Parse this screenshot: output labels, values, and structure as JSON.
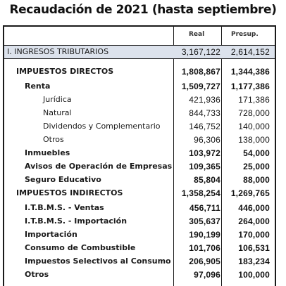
{
  "title": "Recaudación de 2021 (hasta septiembre)",
  "columns": {
    "real": "Real",
    "presup": "Presup."
  },
  "rows": [
    {
      "label": "I. INGRESOS TRIBUTARIOS",
      "real": "3,167,122",
      "presup": "2,614,152"
    },
    {
      "label": "IMPUESTOS DIRECTOS",
      "real": "1,808,867",
      "presup": "1,344,386"
    },
    {
      "label": "Renta",
      "real": "1,509,727",
      "presup": "1,177,386"
    },
    {
      "label": "Jurídica",
      "real": "421,936",
      "presup": "171,386"
    },
    {
      "label": "Natural",
      "real": "844,733",
      "presup": "728,000"
    },
    {
      "label": "Dividendos y Complementario",
      "real": "146,752",
      "presup": "140,000"
    },
    {
      "label": "Otros",
      "real": "96,306",
      "presup": "138,000"
    },
    {
      "label": "Inmuebles",
      "real": "103,972",
      "presup": "54,000"
    },
    {
      "label": "Avisos de Operación de Empresas",
      "real": "109,365",
      "presup": "25,000"
    },
    {
      "label": "Seguro Educativo",
      "real": "85,804",
      "presup": "88,000"
    },
    {
      "label": "IMPUESTOS INDIRECTOS",
      "real": "1,358,254",
      "presup": "1,269,765"
    },
    {
      "label": "I.T.B.M.S. - Ventas",
      "real": "456,711",
      "presup": "446,000"
    },
    {
      "label": "I.T.B.M.S. - Importación",
      "real": "305,637",
      "presup": "264,000"
    },
    {
      "label": "Importación",
      "real": "190,199",
      "presup": "170,000"
    },
    {
      "label": "Consumo de Combustible",
      "real": "101,706",
      "presup": "106,531"
    },
    {
      "label": "Impuestos Selectivos al Consumo",
      "real": "206,905",
      "presup": "183,234"
    },
    {
      "label": "Otros",
      "real": "97,096",
      "presup": "100,000"
    }
  ]
}
